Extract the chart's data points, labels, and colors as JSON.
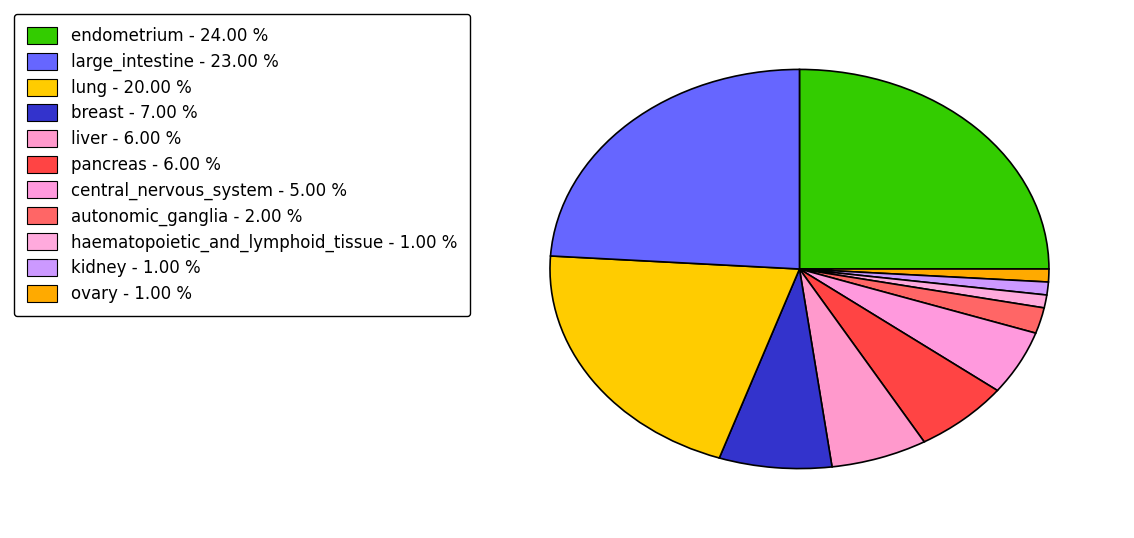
{
  "labels": [
    "endometrium",
    "ovary",
    "kidney",
    "haematopoietic_and_lymphoid_tissue",
    "autonomic_ganglia",
    "central_nervous_system",
    "pancreas",
    "liver",
    "breast",
    "lung",
    "large_intestine"
  ],
  "values": [
    24.0,
    1.0,
    1.0,
    1.0,
    2.0,
    5.0,
    6.0,
    6.0,
    7.0,
    20.0,
    23.0
  ],
  "colors": [
    "#33cc00",
    "#ffaa00",
    "#cc99ff",
    "#ffaadd",
    "#ff6666",
    "#ff99dd",
    "#ff4444",
    "#ff99cc",
    "#3333cc",
    "#ffcc00",
    "#6666ff"
  ],
  "legend_order_labels": [
    "endometrium - 24.00 %",
    "large_intestine - 23.00 %",
    "lung - 20.00 %",
    "breast - 7.00 %",
    "liver - 6.00 %",
    "pancreas - 6.00 %",
    "central_nervous_system - 5.00 %",
    "autonomic_ganglia - 2.00 %",
    "haematopoietic_and_lymphoid_tissue - 1.00 %",
    "kidney - 1.00 %",
    "ovary - 1.00 %"
  ],
  "legend_order_colors": [
    "#33cc00",
    "#6666ff",
    "#ffcc00",
    "#3333cc",
    "#ff99cc",
    "#ff4444",
    "#ff99dd",
    "#ff6666",
    "#ffaadd",
    "#cc99ff",
    "#ffaa00"
  ],
  "background_color": "#ffffff",
  "legend_fontsize": 12,
  "startangle": 90,
  "counterclock": false
}
